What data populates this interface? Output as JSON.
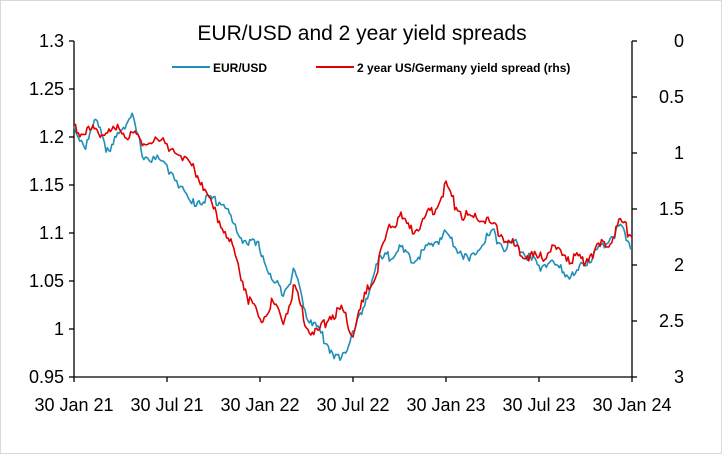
{
  "chart_data": {
    "type": "line",
    "title": "EUR/USD and 2 year yield spreads",
    "x_ticks": [
      "30 Jan 21",
      "30 Jul 21",
      "30 Jan 22",
      "30 Jul 22",
      "30 Jan 23",
      "30 Jul 23",
      "30 Jan 24"
    ],
    "y_left": {
      "min": 0.95,
      "max": 1.3,
      "ticks": [
        "1.3",
        "1.25",
        "1.2",
        "1.15",
        "1.1",
        "1.05",
        "1",
        "0.95"
      ]
    },
    "y_right": {
      "min": 0,
      "max": 3,
      "reversed": true,
      "ticks": [
        "0",
        "0.5",
        "1",
        "1.5",
        "2",
        "2.5",
        "3"
      ]
    },
    "legend_position": "top-center",
    "series": [
      {
        "name": "EUR/USD",
        "axis": "left",
        "color": "#1f8fb8",
        "x": [
          0,
          1.5,
          3,
          4.5,
          6,
          7.5,
          9,
          11,
          13,
          15,
          16.5,
          18,
          19.5,
          21,
          22.5,
          24,
          25.5,
          27,
          28.5,
          30,
          31.5,
          33,
          34.5,
          36
        ],
        "y": [
          1.21,
          1.19,
          1.22,
          1.18,
          1.21,
          1.22,
          1.18,
          1.175,
          1.16,
          1.13,
          1.135,
          1.135,
          1.13,
          1.1,
          1.09,
          1.085,
          1.05,
          1.04,
          1.06,
          1.015,
          1.0,
          0.98,
          0.965,
          1.0
        ],
        "x2": [
          37.5,
          39,
          40.5,
          42,
          43.5,
          45,
          46.5,
          48,
          49.5,
          51,
          52.5,
          54,
          55.5,
          57,
          58.5,
          60,
          61.5,
          63,
          64.5,
          66,
          67.5,
          69,
          70.5,
          72
        ],
        "y2": [
          1.02,
          1.07,
          1.075,
          1.085,
          1.07,
          1.08,
          1.09,
          1.1,
          1.085,
          1.07,
          1.09,
          1.1,
          1.085,
          1.09,
          1.075,
          1.065,
          1.07,
          1.06,
          1.055,
          1.07,
          1.08,
          1.095,
          1.105,
          1.085
        ]
      },
      {
        "name": "2 year US/Germany yield spread (rhs)",
        "axis": "right",
        "color": "#e00000",
        "x": [
          0,
          1.5,
          3,
          4.5,
          6,
          7.5,
          9,
          11,
          13,
          15,
          16.5,
          18,
          19.5,
          21,
          22.5,
          24,
          25.5,
          27,
          28.5,
          30,
          31.5,
          33,
          34.5,
          36
        ],
        "y": [
          0.8,
          0.8,
          0.8,
          0.82,
          0.8,
          0.85,
          0.88,
          0.9,
          0.95,
          1.1,
          1.25,
          1.5,
          1.7,
          1.95,
          2.3,
          2.5,
          2.35,
          2.5,
          2.2,
          2.55,
          2.6,
          2.45,
          2.4,
          2.6
        ],
        "x2": [
          37.5,
          39,
          40.5,
          42,
          43.5,
          45,
          46.5,
          48,
          49.5,
          51,
          52.5,
          54,
          55.5,
          57,
          58.5,
          60,
          61.5,
          63,
          64.5,
          66,
          67.5,
          69,
          70.5,
          72
        ],
        "y2": [
          2.3,
          2.05,
          1.7,
          1.55,
          1.7,
          1.6,
          1.5,
          1.3,
          1.5,
          1.6,
          1.55,
          1.65,
          1.75,
          1.85,
          1.9,
          1.95,
          1.85,
          1.9,
          1.95,
          1.95,
          1.85,
          1.8,
          1.6,
          1.75
        ]
      }
    ]
  }
}
